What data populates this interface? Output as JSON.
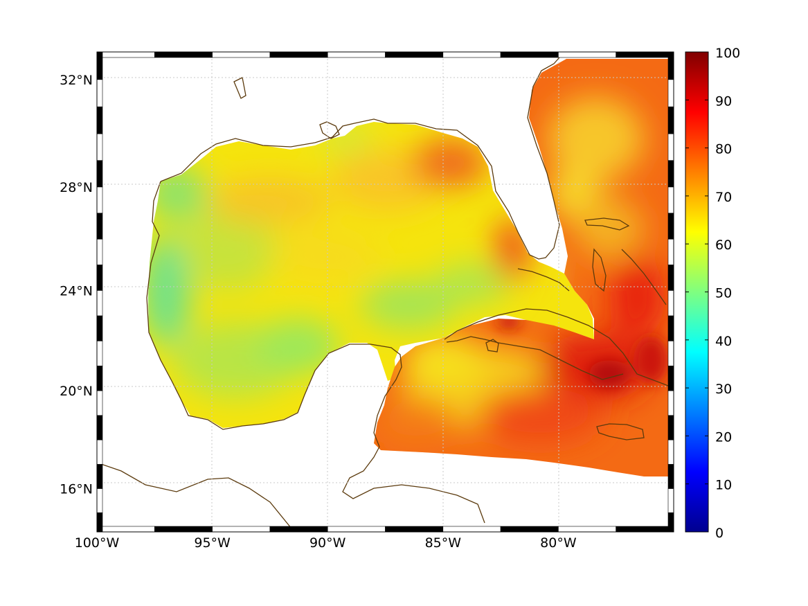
{
  "map": {
    "projection": "mercator",
    "lon_range": [
      -100,
      -75
    ],
    "lat_range": [
      14.2,
      33
    ],
    "gridlines": true,
    "coastline_color": "#5b3a0d",
    "lon_ticks": [
      {
        "value": -100,
        "label": "100°W"
      },
      {
        "value": -95,
        "label": "95°W"
      },
      {
        "value": -90,
        "label": "90°W"
      },
      {
        "value": -85,
        "label": "85°W"
      },
      {
        "value": -80,
        "label": "80°W"
      }
    ],
    "lat_ticks": [
      {
        "value": 32,
        "label": "32°N"
      },
      {
        "value": 28,
        "label": "28°N"
      },
      {
        "value": 24,
        "label": "24°N"
      },
      {
        "value": 20,
        "label": "20°N"
      },
      {
        "value": 16,
        "label": "16°N"
      }
    ]
  },
  "colorbar": {
    "colormap": "jet",
    "min": 0,
    "max": 100,
    "ticks": [
      {
        "value": 100,
        "label": "100"
      },
      {
        "value": 90,
        "label": "90"
      },
      {
        "value": 80,
        "label": "80"
      },
      {
        "value": 70,
        "label": "70"
      },
      {
        "value": 60,
        "label": "60"
      },
      {
        "value": 50,
        "label": "50"
      },
      {
        "value": 40,
        "label": "40"
      },
      {
        "value": 30,
        "label": "30"
      },
      {
        "value": 20,
        "label": "20"
      },
      {
        "value": 10,
        "label": "10"
      },
      {
        "value": 0,
        "label": "0"
      }
    ]
  },
  "field_regions": [
    {
      "name": "western gulf",
      "value": 60
    },
    {
      "name": "northern gulf",
      "value": 65
    },
    {
      "name": "southern gulf",
      "value": 55
    },
    {
      "name": "off florida panhandle",
      "value": 80
    },
    {
      "name": "atlantic off florida",
      "value": 72
    },
    {
      "name": "northwest caribbean",
      "value": 80
    },
    {
      "name": "south of cuba",
      "value": 88
    }
  ]
}
